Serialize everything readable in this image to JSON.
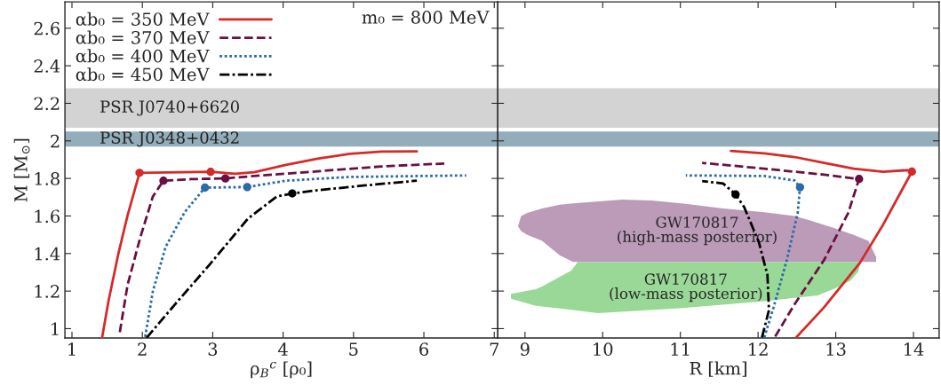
{
  "chart_data": [
    {
      "type": "line",
      "xlabel": "ρ$_{B}$$^{c}$ [ρ₀]",
      "ylabel": "M [M$_{⊙}$]",
      "xlim": [
        0.9,
        7.05
      ],
      "ylim": [
        0.95,
        2.74
      ],
      "xticks": [
        1,
        2,
        3,
        4,
        5,
        6,
        7
      ],
      "yticks": [
        1,
        1.2,
        1.4,
        1.6,
        1.8,
        2,
        2.2,
        2.4,
        2.6
      ],
      "grid": false,
      "legend": "top left",
      "annotations": [
        "m₀ = 800 MeV"
      ],
      "bands": [
        {
          "axis": "y",
          "from": 2.07,
          "to": 2.28,
          "label": "PSR J0740+6620",
          "color": "#d3d3d3"
        },
        {
          "axis": "y",
          "from": 1.97,
          "to": 2.05,
          "label": "PSR J0348+0432",
          "color": "#93adbb"
        }
      ],
      "series": [
        {
          "name": "αb₀ = 350 MeV",
          "color": "#d62a2a",
          "line_style": "solid",
          "x": [
            1.43,
            1.52,
            1.66,
            1.79,
            1.96,
            2.97,
            3.32,
            3.59,
            4.04,
            4.49,
            4.95,
            5.4,
            5.9
          ],
          "values": [
            0.956,
            1.149,
            1.4,
            1.603,
            1.83,
            1.835,
            1.825,
            1.833,
            1.872,
            1.905,
            1.931,
            1.943,
            1.944
          ]
        },
        {
          "name": "αb₀ = 370 MeV",
          "color": "#6a1040",
          "line_style": "dashed",
          "x": [
            1.68,
            1.79,
            1.97,
            2.15,
            2.3,
            2.69,
            3.18,
            3.59,
            4.49,
            5.4,
            6.32
          ],
          "values": [
            0.981,
            1.233,
            1.485,
            1.704,
            1.788,
            1.796,
            1.8,
            1.813,
            1.838,
            1.864,
            1.88
          ]
        },
        {
          "name": "αb₀ = 400 MeV",
          "color": "#2a6aa8",
          "line_style": "dotted",
          "x": [
            2.04,
            2.15,
            2.33,
            2.6,
            2.89,
            3.49,
            4.04,
            4.95,
            6.6
          ],
          "values": [
            0.956,
            1.2,
            1.435,
            1.62,
            1.751,
            1.754,
            1.788,
            1.808,
            1.816
          ]
        },
        {
          "name": "αb₀ = 450 MeV",
          "color": "#000000",
          "line_style": "dashdot",
          "x": [
            2.06,
            2.47,
            2.96,
            3.5,
            3.91,
            4.13,
            4.49,
            5.17,
            5.9
          ],
          "values": [
            0.951,
            1.132,
            1.343,
            1.586,
            1.704,
            1.72,
            1.737,
            1.763,
            1.788
          ]
        },
        {
          "type": "scatter",
          "marker": "circle",
          "color": "#d62a2a",
          "x": [
            1.96,
            2.97
          ],
          "values": [
            1.83,
            1.835
          ]
        },
        {
          "type": "scatter",
          "marker": "circle",
          "color": "#6a1040",
          "x": [
            2.3,
            3.18
          ],
          "values": [
            1.788,
            1.8
          ]
        },
        {
          "type": "scatter",
          "marker": "circle",
          "color": "#2a6aa8",
          "x": [
            2.89,
            3.49
          ],
          "values": [
            1.751,
            1.754
          ]
        },
        {
          "type": "scatter",
          "marker": "circle",
          "color": "#000000",
          "x": [
            4.13
          ],
          "values": [
            1.72
          ]
        }
      ]
    },
    {
      "type": "line",
      "xlabel": "R [km]",
      "xlim": [
        8.65,
        14.33
      ],
      "ylim": [
        0.95,
        2.74
      ],
      "xticks": [
        9,
        10,
        11,
        12,
        13,
        14
      ],
      "yticks": [
        1,
        1.2,
        1.4,
        1.6,
        1.8,
        2,
        2.2,
        2.4,
        2.6
      ],
      "tick_labels": "x",
      "grid": false,
      "bands": [
        {
          "axis": "y",
          "from": 2.07,
          "to": 2.28,
          "color": "#d3d3d3"
        },
        {
          "axis": "y",
          "from": 1.97,
          "to": 2.05,
          "color": "#93adbb"
        }
      ],
      "series": [
        {
          "name": "GW170817\n(high-mass posterior)",
          "type": "area",
          "color": "#bb9bb8",
          "x": [
            8.91,
            8.95,
            9.03,
            9.22,
            9.45,
            9.62,
            10.25,
            10.63,
            11.09,
            11.55,
            12.08,
            12.47,
            12.66,
            12.96,
            13.23,
            13.42,
            13.52,
            13.52,
            9.62,
            9.45,
            9.22,
            9.03,
            8.95
          ],
          "values": [
            1.546,
            1.6,
            1.616,
            1.64,
            1.66,
            1.667,
            1.687,
            1.682,
            1.664,
            1.64,
            1.62,
            1.6,
            1.577,
            1.538,
            1.499,
            1.467,
            1.38,
            1.355,
            1.355,
            1.39,
            1.467,
            1.5,
            1.52
          ]
        },
        {
          "name": "GW170817\n(low-mass posterior)",
          "type": "area",
          "color": "#99d896",
          "x": [
            8.82,
            9.14,
            9.22,
            9.6,
            9.68,
            13.32,
            13.29,
            13.19,
            13.0,
            12.77,
            12.08,
            10.94,
            9.94,
            9.6,
            9.22,
            9.14,
            8.82
          ],
          "values": [
            1.185,
            1.21,
            1.224,
            1.311,
            1.355,
            1.355,
            1.303,
            1.256,
            1.216,
            1.177,
            1.146,
            1.107,
            1.083,
            1.1,
            1.118,
            1.122,
            1.159
          ]
        },
        {
          "color": "#d62a2a",
          "line_style": "solid",
          "x": [
            12.49,
            12.85,
            13.31,
            13.61,
            13.98,
            13.92,
            13.61,
            13.23,
            12.85,
            12.47,
            12.08,
            11.65
          ],
          "values": [
            0.953,
            1.114,
            1.35,
            1.554,
            1.836,
            1.844,
            1.836,
            1.852,
            1.883,
            1.914,
            1.933,
            1.946
          ]
        },
        {
          "color": "#6a1040",
          "line_style": "dashed",
          "x": [
            12.22,
            12.47,
            12.85,
            13.16,
            13.3,
            12.85,
            12.08,
            11.28
          ],
          "values": [
            0.958,
            1.13,
            1.366,
            1.616,
            1.797,
            1.82,
            1.852,
            1.883
          ]
        },
        {
          "color": "#2a6aa8",
          "line_style": "dotted",
          "x": [
            12.08,
            12.2,
            12.37,
            12.51,
            12.54,
            12.47,
            12.08,
            11.07
          ],
          "values": [
            0.953,
            1.114,
            1.366,
            1.616,
            1.753,
            1.789,
            1.813,
            1.816
          ]
        },
        {
          "color": "#000000",
          "line_style": "dashdot",
          "x": [
            12.05,
            12.14,
            12.12,
            12.01,
            11.82,
            11.71,
            11.55,
            11.28
          ],
          "values": [
            0.953,
            1.099,
            1.287,
            1.46,
            1.648,
            1.715,
            1.773,
            1.786
          ]
        },
        {
          "type": "scatter",
          "marker": "circle",
          "color": "#d62a2a",
          "x": [
            13.98
          ],
          "values": [
            1.836
          ]
        },
        {
          "type": "scatter",
          "marker": "circle",
          "color": "#6a1040",
          "x": [
            13.3
          ],
          "values": [
            1.797
          ]
        },
        {
          "type": "scatter",
          "marker": "circle",
          "color": "#2a6aa8",
          "x": [
            12.54
          ],
          "values": [
            1.753
          ]
        },
        {
          "type": "scatter",
          "marker": "circle",
          "color": "#000000",
          "x": [
            11.71
          ],
          "values": [
            1.715
          ]
        }
      ]
    }
  ]
}
